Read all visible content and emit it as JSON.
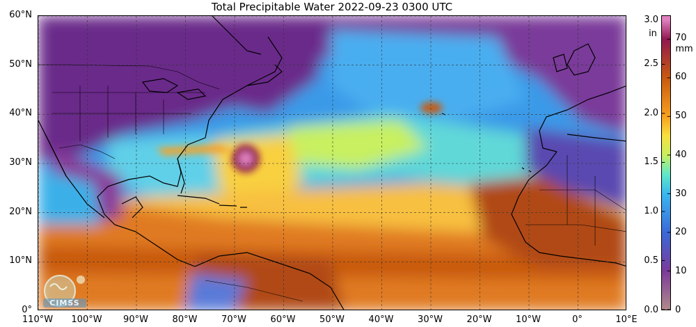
{
  "title": "Total Precipitable Water  2022-09-23 0300 UTC",
  "map": {
    "lat_labels": [
      "60°N",
      "50°N",
      "40°N",
      "30°N",
      "20°N",
      "10°N",
      "0°"
    ],
    "lon_labels": [
      "110°W",
      "100°W",
      "90°W",
      "80°W",
      "70°W",
      "60°W",
      "50°W",
      "40°W",
      "30°W",
      "20°W",
      "10°W",
      "0°",
      "10°E"
    ],
    "lat_range": [
      0,
      60
    ],
    "lon_range": [
      -110,
      10
    ],
    "grid": true,
    "colormap_mm": [
      {
        "v": 0,
        "c": "#b08a8a"
      },
      {
        "v": 10,
        "c": "#7a3a9a"
      },
      {
        "v": 20,
        "c": "#3a6ad8"
      },
      {
        "v": 30,
        "c": "#3ab8f0"
      },
      {
        "v": 35,
        "c": "#60e8c8"
      },
      {
        "v": 40,
        "c": "#c8f060"
      },
      {
        "v": 45,
        "c": "#f8e040"
      },
      {
        "v": 50,
        "c": "#f8a020"
      },
      {
        "v": 60,
        "c": "#c85a10"
      },
      {
        "v": 70,
        "c": "#901850"
      },
      {
        "v": 75,
        "c": "#e080c0"
      }
    ]
  },
  "colorbar": {
    "unit_in": "in",
    "unit_mm": "mm",
    "in_ticks": [
      "3.0",
      "2.5",
      "2.0",
      "1.5",
      "1.0",
      "0.5",
      "0.0"
    ],
    "mm_ticks": [
      "70",
      "60",
      "50",
      "40",
      "30",
      "20",
      "10",
      "0"
    ],
    "range_mm": [
      0,
      76
    ]
  },
  "logo": {
    "text": "CIMSS"
  }
}
